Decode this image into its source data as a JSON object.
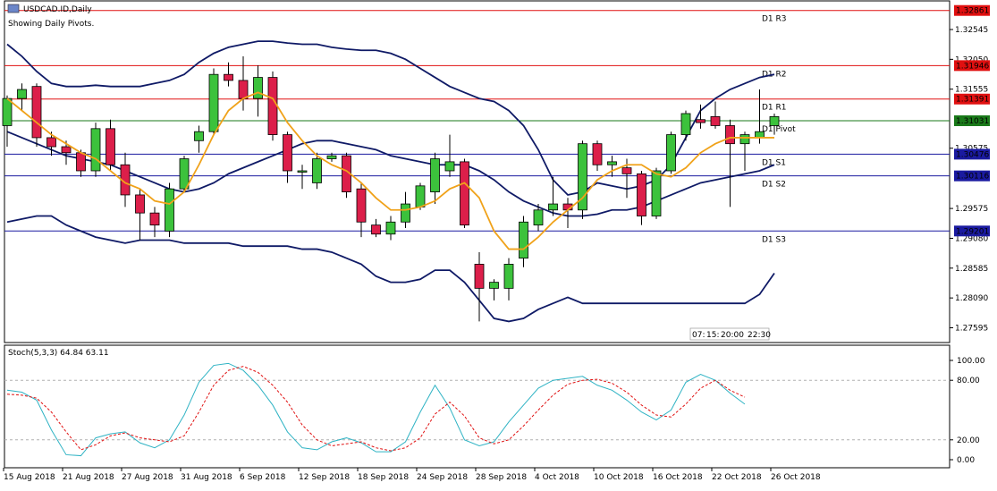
{
  "header": {
    "symbol_title": "USDCAD.ID,Daily",
    "subtitle": "Showing Daily Pivots."
  },
  "colors": {
    "bull": "#3cc23c",
    "bear": "#dc1f4a",
    "band": "#0f1a66",
    "ma": "#f0a21a",
    "resistance": "#e01010",
    "pivot": "#1a7a1a",
    "support": "#1a1aa0",
    "stoch_main": "#2fb3c4",
    "stoch_signal": "#e01010"
  },
  "pivots": [
    {
      "name": "D1 R3",
      "price": 1.32861,
      "price_label": "1.32861",
      "color": "#e01010"
    },
    {
      "name": "D1 R2",
      "price": 1.31946,
      "price_label": "1.31946",
      "color": "#e01010"
    },
    {
      "name": "D1 R1",
      "price": 1.31391,
      "price_label": "1.31391",
      "color": "#e01010"
    },
    {
      "name": "D1 Pivot",
      "price": 1.31031,
      "price_label": "1.31031",
      "color": "#1a7a1a"
    },
    {
      "name": "D1 S1",
      "price": 1.30476,
      "price_label": "1.30476",
      "color": "#1a1aa0"
    },
    {
      "name": "D1 S2",
      "price": 1.30116,
      "price_label": "1.30116",
      "color": "#1a1aa0"
    },
    {
      "name": "D1 S3",
      "price": 1.29201,
      "price_label": "1.29201",
      "color": "#1a1aa0"
    }
  ],
  "price_axis_ticks": [
    "1.32545",
    "1.32050",
    "1.31555",
    "1.30575",
    "1.29575",
    "1.29080",
    "1.28585",
    "1.28090",
    "1.27595"
  ],
  "price_axis_tick_values": [
    1.32545,
    1.3205,
    1.31555,
    1.30575,
    1.29575,
    1.2908,
    1.28585,
    1.2809,
    1.27595
  ],
  "session_marker": {
    "labels": [
      "07:",
      "15:",
      "20:00",
      "22:30"
    ]
  },
  "stoch": {
    "label": "Stoch(5,3,3) 64.84 63.11",
    "levels": [
      "100.00",
      "80.00",
      "20.00",
      "0.00"
    ],
    "level_values": [
      100,
      80,
      20,
      0
    ],
    "main": [
      70,
      68,
      60,
      30,
      5,
      4,
      22,
      26,
      28,
      17,
      12,
      20,
      45,
      78,
      95,
      97,
      90,
      75,
      55,
      28,
      12,
      10,
      18,
      22,
      17,
      8,
      8,
      18,
      48,
      75,
      52,
      20,
      14,
      18,
      38,
      55,
      72,
      80,
      82,
      84,
      75,
      70,
      60,
      48,
      40,
      50,
      78,
      86,
      80,
      67,
      56
    ],
    "signal": [
      66,
      65,
      62,
      48,
      28,
      10,
      15,
      24,
      27,
      22,
      20,
      18,
      24,
      48,
      75,
      90,
      94,
      88,
      75,
      58,
      35,
      20,
      14,
      16,
      18,
      12,
      9,
      12,
      22,
      46,
      58,
      44,
      22,
      16,
      20,
      34,
      50,
      65,
      76,
      80,
      81,
      77,
      68,
      55,
      45,
      43,
      56,
      72,
      80,
      70,
      63
    ]
  },
  "chart_data": {
    "type": "candlestick",
    "title": "USDCAD.ID,Daily",
    "ylim": [
      1.2735,
      1.3302
    ],
    "x_labels": [
      "15 Aug 2018",
      "21 Aug 2018",
      "27 Aug 2018",
      "31 Aug 2018",
      "6 Sep 2018",
      "12 Sep 2018",
      "18 Sep 2018",
      "24 Sep 2018",
      "28 Sep 2018",
      "4 Oct 2018",
      "10 Oct 2018",
      "16 Oct 2018",
      "22 Oct 2018",
      "26 Oct 2018"
    ],
    "x_label_bars": [
      0,
      4,
      8,
      12,
      16,
      20,
      24,
      28,
      32,
      36,
      40,
      44,
      48,
      52
    ],
    "candles": [
      [
        1.3095,
        1.3145,
        1.306,
        1.314
      ],
      [
        1.314,
        1.3165,
        1.312,
        1.3155
      ],
      [
        1.316,
        1.3165,
        1.306,
        1.3075
      ],
      [
        1.3075,
        1.3085,
        1.3045,
        1.306
      ],
      [
        1.306,
        1.307,
        1.303,
        1.305
      ],
      [
        1.305,
        1.3055,
        1.301,
        1.302
      ],
      [
        1.302,
        1.31,
        1.301,
        1.309
      ],
      [
        1.309,
        1.3105,
        1.302,
        1.303
      ],
      [
        1.303,
        1.305,
        1.296,
        1.298
      ],
      [
        1.298,
        1.299,
        1.2905,
        1.295
      ],
      [
        1.295,
        1.296,
        1.291,
        1.293
      ],
      [
        1.292,
        1.3,
        1.291,
        1.299
      ],
      [
        1.299,
        1.3045,
        1.2985,
        1.304
      ],
      [
        1.307,
        1.3095,
        1.305,
        1.3085
      ],
      [
        1.3085,
        1.319,
        1.308,
        1.318
      ],
      [
        1.318,
        1.32,
        1.316,
        1.317
      ],
      [
        1.317,
        1.321,
        1.312,
        1.314
      ],
      [
        1.314,
        1.3195,
        1.311,
        1.3175
      ],
      [
        1.3175,
        1.3185,
        1.307,
        1.308
      ],
      [
        1.308,
        1.3085,
        1.3,
        1.302
      ],
      [
        1.302,
        1.303,
        1.299,
        1.302
      ],
      [
        1.3,
        1.305,
        1.299,
        1.304
      ],
      [
        1.304,
        1.305,
        1.3035,
        1.3045
      ],
      [
        1.3045,
        1.305,
        1.2975,
        1.2985
      ],
      [
        1.299,
        1.3,
        1.291,
        1.2935
      ],
      [
        1.293,
        1.294,
        1.291,
        1.2915
      ],
      [
        1.2915,
        1.2945,
        1.2905,
        1.2935
      ],
      [
        1.2935,
        1.2985,
        1.2925,
        1.2965
      ],
      [
        1.296,
        1.3,
        1.2955,
        1.2995
      ],
      [
        1.2985,
        1.305,
        1.2965,
        1.304
      ],
      [
        1.302,
        1.308,
        1.301,
        1.3035
      ],
      [
        1.3035,
        1.304,
        1.2925,
        1.293
      ],
      [
        1.2865,
        1.2885,
        1.277,
        1.2825
      ],
      [
        1.2825,
        1.284,
        1.2805,
        1.2835
      ],
      [
        1.2825,
        1.2875,
        1.2805,
        1.2865
      ],
      [
        1.2875,
        1.2945,
        1.286,
        1.2935
      ],
      [
        1.293,
        1.2965,
        1.292,
        1.2955
      ],
      [
        1.2955,
        1.301,
        1.2945,
        1.2965
      ],
      [
        1.2965,
        1.2975,
        1.2925,
        1.2955
      ],
      [
        1.2955,
        1.307,
        1.294,
        1.3065
      ],
      [
        1.3065,
        1.307,
        1.302,
        1.303
      ],
      [
        1.303,
        1.3045,
        1.301,
        1.3035
      ],
      [
        1.3025,
        1.304,
        1.2975,
        1.3015
      ],
      [
        1.3015,
        1.302,
        1.293,
        1.2945
      ],
      [
        1.2945,
        1.3025,
        1.294,
        1.302
      ],
      [
        1.302,
        1.3085,
        1.3015,
        1.308
      ],
      [
        1.308,
        1.312,
        1.307,
        1.3115
      ],
      [
        1.3105,
        1.313,
        1.309,
        1.31
      ],
      [
        1.311,
        1.3135,
        1.309,
        1.3095
      ],
      [
        1.3095,
        1.3105,
        1.296,
        1.3065
      ],
      [
        1.3065,
        1.3085,
        1.302,
        1.308
      ],
      [
        1.3075,
        1.3155,
        1.3065,
        1.3085
      ],
      [
        1.3095,
        1.3115,
        1.308,
        1.311
      ]
    ],
    "bollinger_upper": [
      1.323,
      1.321,
      1.3185,
      1.3165,
      1.316,
      1.316,
      1.3162,
      1.316,
      1.316,
      1.316,
      1.3165,
      1.317,
      1.318,
      1.32,
      1.3215,
      1.3225,
      1.323,
      1.3235,
      1.3235,
      1.3232,
      1.323,
      1.323,
      1.3225,
      1.3222,
      1.322,
      1.322,
      1.3215,
      1.3205,
      1.319,
      1.3175,
      1.316,
      1.315,
      1.314,
      1.3135,
      1.312,
      1.3095,
      1.3055,
      1.3005,
      1.298,
      1.2985,
      1.3,
      1.2995,
      1.299,
      1.2995,
      1.3005,
      1.303,
      1.3075,
      1.312,
      1.314,
      1.3155,
      1.3165,
      1.3175,
      1.318
    ],
    "bollinger_middle": [
      1.3085,
      1.3075,
      1.3065,
      1.3055,
      1.3045,
      1.304,
      1.3035,
      1.303,
      1.302,
      1.301,
      1.3,
      1.299,
      1.2985,
      1.299,
      1.3,
      1.3015,
      1.3025,
      1.3035,
      1.3045,
      1.3055,
      1.3065,
      1.307,
      1.307,
      1.3065,
      1.306,
      1.3055,
      1.3045,
      1.304,
      1.3035,
      1.303,
      1.303,
      1.303,
      1.302,
      1.3005,
      1.2985,
      1.297,
      1.296,
      1.295,
      1.2945,
      1.2945,
      1.2948,
      1.2955,
      1.2955,
      1.296,
      1.297,
      1.298,
      1.299,
      1.3,
      1.3005,
      1.301,
      1.3015,
      1.302,
      1.303
    ],
    "bollinger_lower": [
      1.2935,
      1.294,
      1.2945,
      1.2945,
      1.293,
      1.292,
      1.291,
      1.2905,
      1.29,
      1.2905,
      1.2905,
      1.2905,
      1.29,
      1.29,
      1.29,
      1.29,
      1.2895,
      1.2895,
      1.2895,
      1.2895,
      1.289,
      1.289,
      1.2885,
      1.2875,
      1.2865,
      1.2845,
      1.2835,
      1.2835,
      1.284,
      1.2855,
      1.2855,
      1.2835,
      1.2805,
      1.2775,
      1.277,
      1.2775,
      1.279,
      1.28,
      1.281,
      1.28,
      1.28,
      1.28,
      1.28,
      1.28,
      1.28,
      1.28,
      1.28,
      1.28,
      1.28,
      1.28,
      1.28,
      1.2815,
      1.285
    ],
    "moving_average": [
      1.314,
      1.312,
      1.31,
      1.308,
      1.3065,
      1.305,
      1.304,
      1.302,
      1.3,
      1.299,
      1.297,
      1.2965,
      1.2985,
      1.303,
      1.308,
      1.312,
      1.314,
      1.315,
      1.314,
      1.31,
      1.307,
      1.3045,
      1.303,
      1.302,
      1.3,
      1.2975,
      1.2955,
      1.2955,
      1.296,
      1.297,
      1.299,
      1.3,
      1.2975,
      1.292,
      1.289,
      1.289,
      1.291,
      1.2935,
      1.2955,
      1.2975,
      1.3005,
      1.302,
      1.303,
      1.303,
      1.3015,
      1.301,
      1.3025,
      1.305,
      1.3065,
      1.3075,
      1.3075,
      1.3075,
      1.3075
    ]
  }
}
